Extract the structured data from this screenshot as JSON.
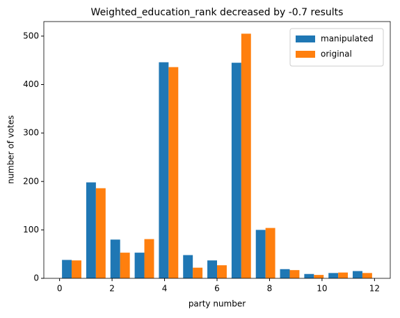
{
  "chart_data": {
    "type": "histogram",
    "title": "Weighted_education_rank decreased by -0.7 results",
    "x_label": "party number",
    "y_label": "number of votes",
    "bins": [
      0,
      0.923,
      1.846,
      2.769,
      3.692,
      4.615,
      5.538,
      6.462,
      7.385,
      8.308,
      9.231,
      10.154,
      11.077,
      12
    ],
    "series": [
      {
        "name": "manipulated",
        "color": "#1f77b4",
        "values": [
          38,
          198,
          80,
          53,
          446,
          48,
          37,
          445,
          100,
          19,
          9,
          11,
          15
        ]
      },
      {
        "name": "original",
        "color": "#ff7f0e",
        "values": [
          37,
          186,
          53,
          81,
          436,
          22,
          27,
          505,
          104,
          17,
          7,
          12,
          11
        ]
      }
    ],
    "xlim": [
      -0.6,
      12.6
    ],
    "xticks": [
      0,
      2,
      4,
      6,
      8,
      10,
      12
    ],
    "ylim": [
      0,
      530
    ],
    "yticks": [
      0,
      100,
      200,
      300,
      400,
      500
    ],
    "legend": "upper right"
  }
}
